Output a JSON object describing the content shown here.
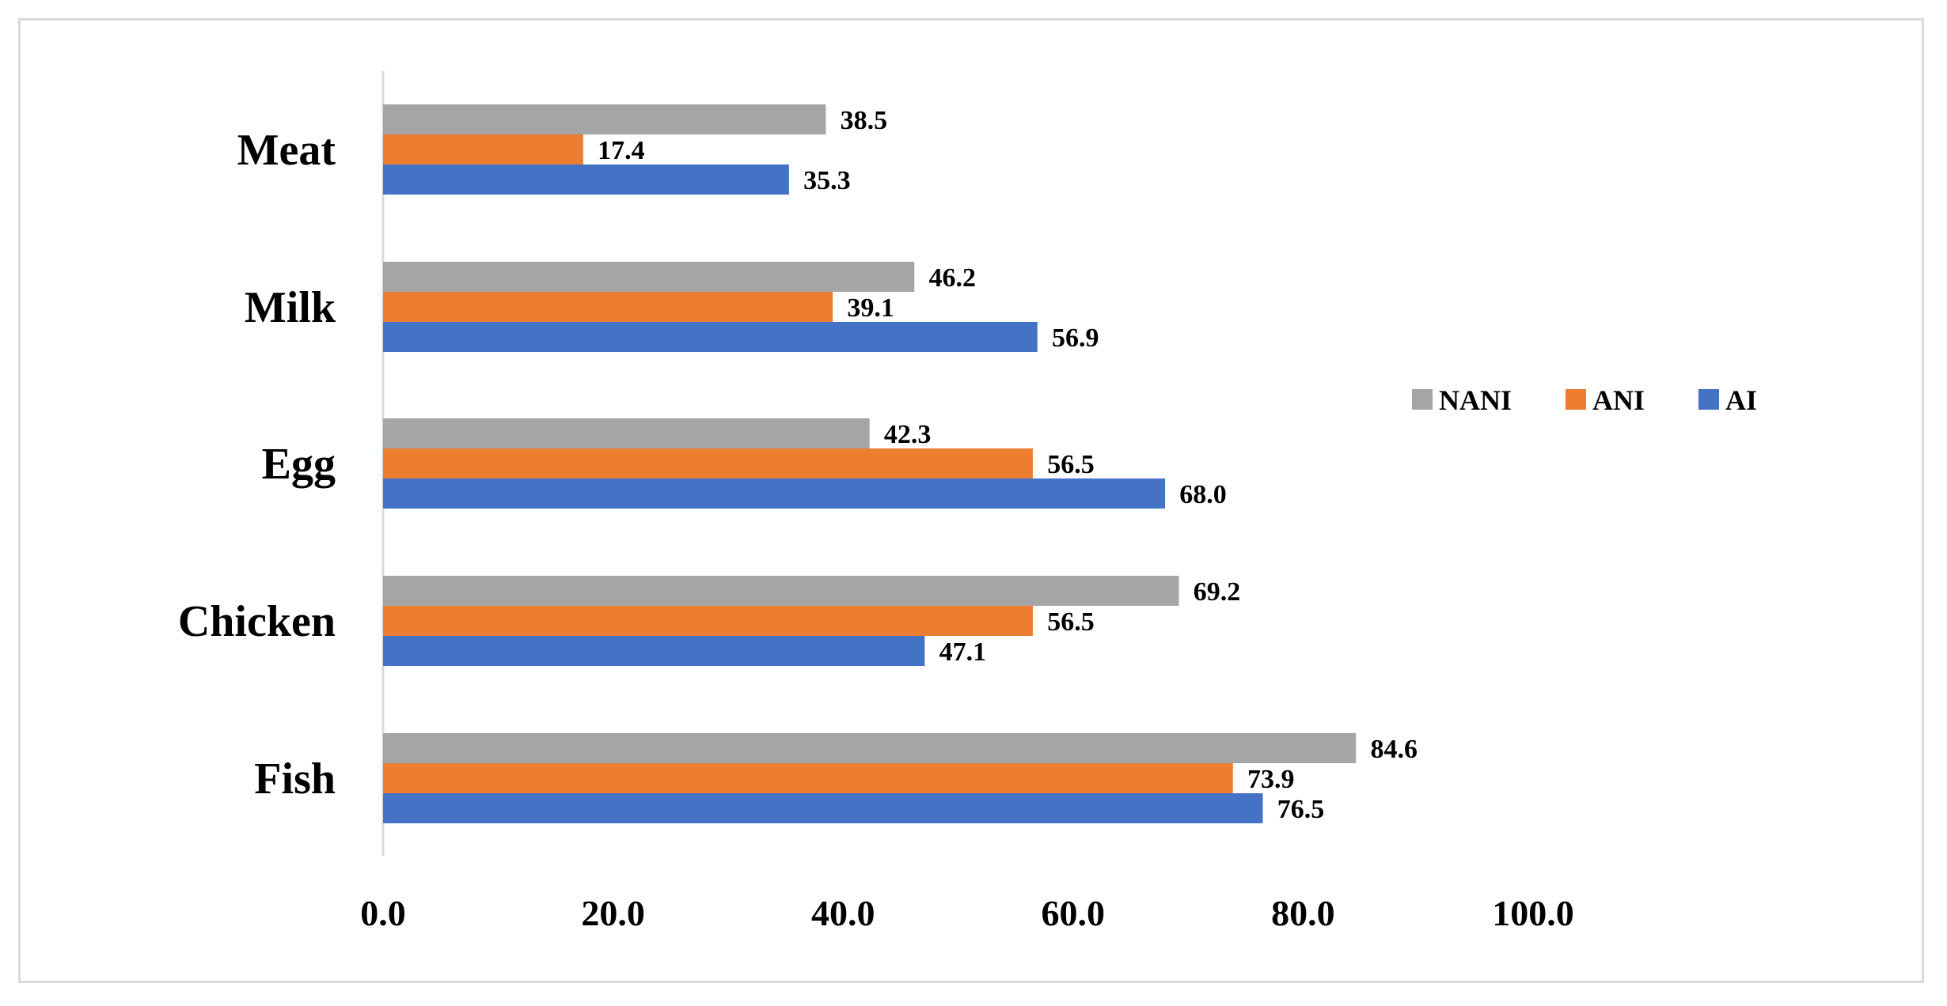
{
  "chart_data": {
    "type": "bar",
    "orientation": "horizontal",
    "title": "",
    "xlabel": "",
    "ylabel": "",
    "xlim": [
      0,
      100
    ],
    "x_ticks": [
      0,
      20,
      40,
      60,
      80,
      100
    ],
    "x_tick_labels": [
      "0.0",
      "20.0",
      "40.0",
      "60.0",
      "80.0",
      "100.0"
    ],
    "grid": false,
    "legend_position": "right",
    "categories": [
      "Meat",
      "Milk",
      "Egg",
      "Chicken",
      "Fish"
    ],
    "series": [
      {
        "name": "NANI",
        "color": "#a5a5a5",
        "values": [
          38.5,
          46.2,
          42.3,
          69.2,
          84.6
        ],
        "labels": [
          "38.5",
          "46.2",
          "42.3",
          "69.2",
          "84.6"
        ]
      },
      {
        "name": "ANI",
        "color": "#ed7d31",
        "values": [
          17.4,
          39.1,
          56.5,
          56.5,
          73.9
        ],
        "labels": [
          "17.4",
          "39.1",
          "56.5",
          "56.5",
          "73.9"
        ]
      },
      {
        "name": "AI",
        "color": "#4472c4",
        "values": [
          35.3,
          56.9,
          68.0,
          47.1,
          76.5
        ],
        "labels": [
          "35.3",
          "56.9",
          "68.0",
          "47.1",
          "76.5"
        ]
      }
    ]
  }
}
